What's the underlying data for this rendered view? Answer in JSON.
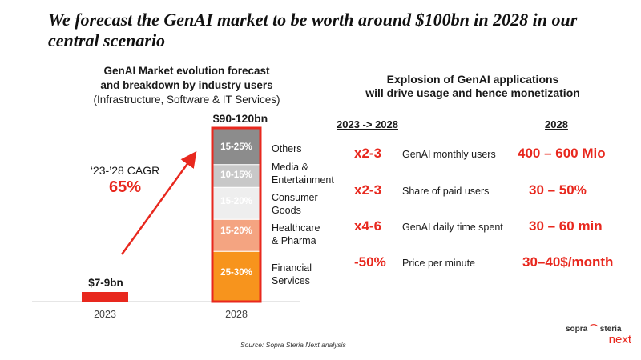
{
  "title": "We forecast the GenAI market to be worth around $100bn in 2028 in our central scenario",
  "chart": {
    "heading_line1": "GenAI Market evolution forecast",
    "heading_line2": "and breakdown by industry users",
    "heading_line3": "(Infrastructure, Software & IT Services)",
    "cagr_label": "‘23-’28 CAGR",
    "cagr_value": "65%",
    "value_2023": "$7-9bn",
    "value_2028": "$90-120bn"
  },
  "chart_data": {
    "type": "bar",
    "categories": [
      "2023",
      "2028"
    ],
    "bar_2023": {
      "label": "$7-9bn"
    },
    "bar_2028": {
      "label": "$90-120bn",
      "segments": [
        {
          "name": "Financial Services",
          "range": "25-30%",
          "value": 27.5,
          "color": "#f7941d"
        },
        {
          "name": "Healthcare & Pharma",
          "range": "15-20%",
          "value": 17.5,
          "color": "#f4a481"
        },
        {
          "name": "Consumer Goods",
          "range": "15-20%",
          "value": 17.5,
          "color": "#eeeeee"
        },
        {
          "name": "Media & Entertainment",
          "range": "10-15%",
          "value": 12.5,
          "color": "#c8c8c8"
        },
        {
          "name": "Others",
          "range": "15-25%",
          "value": 20,
          "color": "#8c8c8c"
        }
      ]
    },
    "bar_outline_color": "#e8281e",
    "source": "Source: Sopra Steria Next analysis"
  },
  "legend": {
    "others": "Others",
    "media_1": "Media &",
    "media_2": "Entertainment",
    "consumer_1": "Consumer",
    "consumer_2": "Goods",
    "health_1": "Healthcare",
    "health_2": "& Pharma",
    "financial_1": "Financial",
    "financial_2": "Services"
  },
  "right": {
    "heading_line1": "Explosion of GenAI applications",
    "heading_line2": "will drive usage and hence monetization",
    "col_period": "2023 -> 2028",
    "col_2028": "2028",
    "rows": [
      {
        "multiplier": "x2-3",
        "metric": "GenAI monthly users",
        "value": "400 – 600 Mio"
      },
      {
        "multiplier": "x2-3",
        "metric": "Share of paid users",
        "value": "30 – 50%"
      },
      {
        "multiplier": "x4-6",
        "metric": "GenAI daily time spent",
        "value": "30 – 60 min"
      },
      {
        "multiplier": "-50%",
        "metric": "Price per minute",
        "value": "30–40$/month"
      }
    ]
  },
  "logo": {
    "brand_part1": "sopra",
    "brand_mark": "⌒",
    "brand_part2": "steria",
    "sub": "next"
  },
  "colors": {
    "accent": "#e8281e",
    "orange": "#f7941d"
  }
}
